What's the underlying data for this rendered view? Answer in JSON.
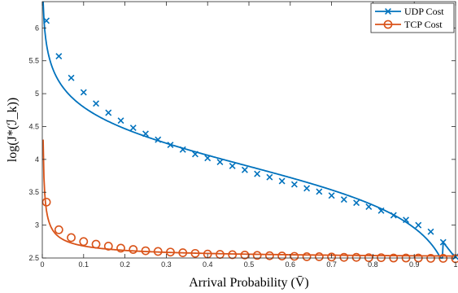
{
  "chart_data": {
    "type": "line",
    "xlabel": "Arrival Probability (V̄)",
    "ylabel": "log(J*(ℐ_k))",
    "xlim": [
      0,
      1
    ],
    "ylim": [
      2.5,
      6.4
    ],
    "xticks": [
      0,
      0.1,
      0.2,
      0.3,
      0.4,
      0.5,
      0.6,
      0.7,
      0.8,
      0.9,
      1
    ],
    "xtick_labels": [
      "0",
      "0.1",
      "0.2",
      "0.3",
      "0.4",
      "0.5",
      "0.6",
      "0.7",
      "0.8",
      "0.9",
      "1"
    ],
    "yticks": [
      2.5,
      3,
      3.5,
      4,
      4.5,
      5,
      5.5,
      6
    ],
    "ytick_labels": [
      "2.5",
      "3",
      "3.5",
      "4",
      "4.5",
      "5",
      "5.5",
      "6"
    ],
    "grid": false,
    "legend_position": "top-right",
    "series": [
      {
        "name": "UDP Cost",
        "color": "#0072BD",
        "marker": "x",
        "x": [
          0.01,
          0.04,
          0.07,
          0.1,
          0.13,
          0.16,
          0.19,
          0.22,
          0.25,
          0.28,
          0.31,
          0.34,
          0.37,
          0.4,
          0.43,
          0.46,
          0.49,
          0.52,
          0.55,
          0.58,
          0.61,
          0.64,
          0.67,
          0.7,
          0.73,
          0.76,
          0.79,
          0.82,
          0.85,
          0.88,
          0.91,
          0.94,
          0.97,
          1.0
        ],
        "y": [
          6.11,
          5.57,
          5.24,
          5.02,
          4.85,
          4.71,
          4.59,
          4.48,
          4.39,
          4.3,
          4.22,
          4.15,
          4.08,
          4.02,
          3.96,
          3.9,
          3.84,
          3.78,
          3.73,
          3.67,
          3.62,
          3.56,
          3.51,
          3.45,
          3.39,
          3.34,
          3.28,
          3.22,
          3.15,
          3.08,
          3.0,
          2.9,
          2.74,
          2.52
        ]
      },
      {
        "name": "TCP Cost",
        "color": "#D95319",
        "marker": "o",
        "x": [
          0.01,
          0.04,
          0.07,
          0.1,
          0.13,
          0.16,
          0.19,
          0.22,
          0.25,
          0.28,
          0.31,
          0.34,
          0.37,
          0.4,
          0.43,
          0.46,
          0.49,
          0.52,
          0.55,
          0.58,
          0.61,
          0.64,
          0.67,
          0.7,
          0.73,
          0.76,
          0.79,
          0.82,
          0.85,
          0.88,
          0.91,
          0.94,
          0.97,
          1.0
        ],
        "y": [
          3.35,
          2.93,
          2.81,
          2.75,
          2.71,
          2.68,
          2.65,
          2.63,
          2.61,
          2.6,
          2.59,
          2.58,
          2.57,
          2.56,
          2.555,
          2.55,
          2.545,
          2.54,
          2.535,
          2.53,
          2.525,
          2.52,
          2.52,
          2.515,
          2.51,
          2.51,
          2.505,
          2.505,
          2.5,
          2.5,
          2.5,
          2.495,
          2.495,
          2.49
        ]
      }
    ]
  }
}
